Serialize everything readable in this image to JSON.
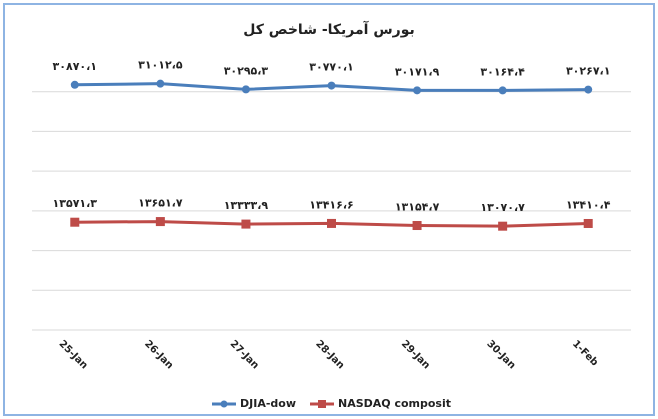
{
  "chart_data": {
    "type": "line",
    "title": "بورس آمریکا- شاخص کل",
    "categories": [
      "25-Jan",
      "26-Jan",
      "27-Jan",
      "28-Jan",
      "29-Jan",
      "30-Jan",
      "1-Feb"
    ],
    "series": [
      {
        "name": "DJIA-dow",
        "color": "#4a7ebb",
        "values": [
          30870.1,
          31012.5,
          30295.3,
          30770.1,
          30171.9,
          30164.4,
          30267.1
        ],
        "value_labels": [
          "۳۰۸۷۰،۱",
          "۳۱۰۱۲،۵",
          "۳۰۲۹۵،۳",
          "۳۰۷۷۰،۱",
          "۳۰۱۷۱،۹",
          "۳۰۱۶۴،۴",
          "۳۰۲۶۷،۱"
        ]
      },
      {
        "name": "NASDAQ composit",
        "color": "#be4b48",
        "values": [
          13571.3,
          13651.7,
          13333.9,
          13416.6,
          13154.7,
          13070.7,
          13410.4
        ],
        "value_labels": [
          "۱۳۵۷۱،۳",
          "۱۳۶۵۱،۷",
          "۱۳۳۳۳،۹",
          "۱۳۴۱۶،۶",
          "۱۳۱۵۴،۷",
          "۱۳۰۷۰،۷",
          "۱۳۴۱۰،۴"
        ]
      }
    ],
    "ylim": [
      0,
      35000
    ],
    "yticks": [
      0,
      5000,
      10000,
      15000,
      20000,
      25000,
      30000
    ],
    "grid": true
  }
}
